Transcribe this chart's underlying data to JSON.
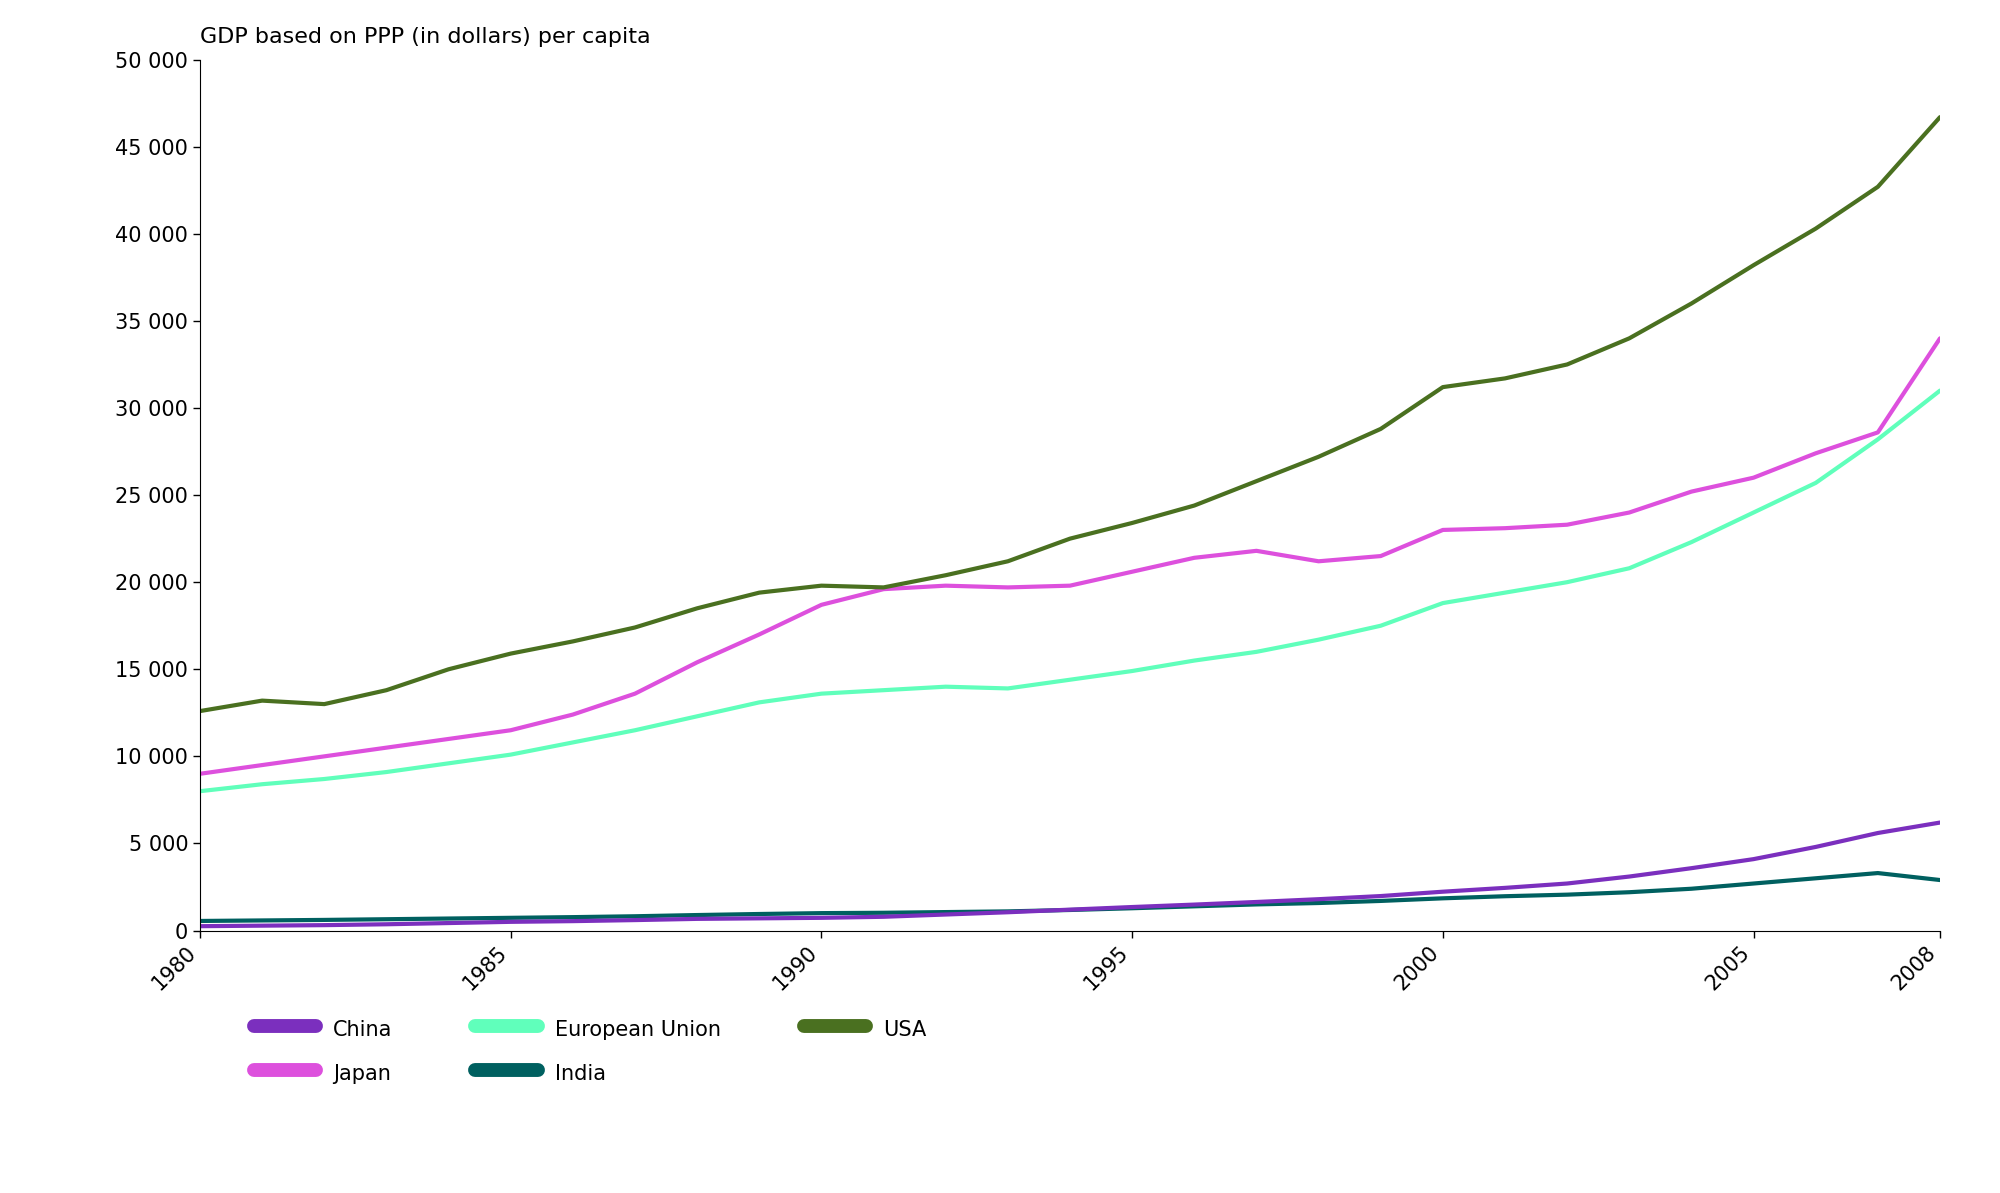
{
  "title": "GDP based on PPP (in dollars) per capita",
  "series": {
    "China": {
      "color": "#7B2FBE",
      "years": [
        1980,
        1981,
        1982,
        1983,
        1984,
        1985,
        1986,
        1987,
        1988,
        1989,
        1990,
        1991,
        1992,
        1993,
        1994,
        1995,
        1996,
        1997,
        1998,
        1999,
        2000,
        2001,
        2002,
        2003,
        2004,
        2005,
        2006,
        2007,
        2008
      ],
      "values": [
        250,
        280,
        310,
        360,
        430,
        500,
        540,
        600,
        670,
        700,
        730,
        790,
        920,
        1050,
        1200,
        1350,
        1490,
        1640,
        1800,
        1980,
        2230,
        2450,
        2700,
        3100,
        3580,
        4100,
        4800,
        5600,
        6200
      ]
    },
    "India": {
      "color": "#006060",
      "years": [
        1980,
        1981,
        1982,
        1983,
        1984,
        1985,
        1986,
        1987,
        1988,
        1989,
        1990,
        1991,
        1992,
        1993,
        1994,
        1995,
        1996,
        1997,
        1998,
        1999,
        2000,
        2001,
        2002,
        2003,
        2004,
        2005,
        2006,
        2007,
        2008
      ],
      "values": [
        550,
        580,
        610,
        650,
        690,
        730,
        770,
        820,
        890,
        950,
        1000,
        1020,
        1060,
        1100,
        1180,
        1280,
        1390,
        1500,
        1580,
        1700,
        1850,
        1970,
        2060,
        2200,
        2400,
        2700,
        3000,
        3300,
        2900
      ]
    },
    "Japan": {
      "color": "#DD50DD",
      "years": [
        1980,
        1981,
        1982,
        1983,
        1984,
        1985,
        1986,
        1987,
        1988,
        1989,
        1990,
        1991,
        1992,
        1993,
        1994,
        1995,
        1996,
        1997,
        1998,
        1999,
        2000,
        2001,
        2002,
        2003,
        2004,
        2005,
        2006,
        2007,
        2008
      ],
      "values": [
        9000,
        9500,
        10000,
        10500,
        11000,
        11500,
        12400,
        13600,
        15400,
        17000,
        18700,
        19600,
        19800,
        19700,
        19800,
        20600,
        21400,
        21800,
        21200,
        21500,
        23000,
        23100,
        23300,
        24000,
        25200,
        26000,
        27400,
        28600,
        34000
      ]
    },
    "USA": {
      "color": "#4A7020",
      "years": [
        1980,
        1981,
        1982,
        1983,
        1984,
        1985,
        1986,
        1987,
        1988,
        1989,
        1990,
        1991,
        1992,
        1993,
        1994,
        1995,
        1996,
        1997,
        1998,
        1999,
        2000,
        2001,
        2002,
        2003,
        2004,
        2005,
        2006,
        2007,
        2008
      ],
      "values": [
        12600,
        13200,
        13000,
        13800,
        15000,
        15900,
        16600,
        17400,
        18500,
        19400,
        19800,
        19700,
        20400,
        21200,
        22500,
        23400,
        24400,
        25800,
        27200,
        28800,
        31200,
        31700,
        32500,
        34000,
        36000,
        38200,
        40300,
        42700,
        46700
      ]
    },
    "European Union": {
      "color": "#60FFBB",
      "years": [
        1980,
        1981,
        1982,
        1983,
        1984,
        1985,
        1986,
        1987,
        1988,
        1989,
        1990,
        1991,
        1992,
        1993,
        1994,
        1995,
        1996,
        1997,
        1998,
        1999,
        2000,
        2001,
        2002,
        2003,
        2004,
        2005,
        2006,
        2007,
        2008
      ],
      "values": [
        8000,
        8400,
        8700,
        9100,
        9600,
        10100,
        10800,
        11500,
        12300,
        13100,
        13600,
        13800,
        14000,
        13900,
        14400,
        14900,
        15500,
        16000,
        16700,
        17500,
        18800,
        19400,
        20000,
        20800,
        22300,
        24000,
        25700,
        28200,
        31000
      ]
    }
  },
  "xlim": [
    1980,
    2008
  ],
  "ylim": [
    0,
    50000
  ],
  "yticks": [
    0,
    5000,
    10000,
    15000,
    20000,
    25000,
    30000,
    35000,
    40000,
    45000,
    50000
  ],
  "xticks": [
    1980,
    1985,
    1990,
    1995,
    2000,
    2005,
    2008
  ],
  "legend_order": [
    "China",
    "Japan",
    "European Union",
    "India",
    "USA"
  ],
  "linewidth": 3.0,
  "title_fontsize": 16,
  "tick_fontsize": 15,
  "legend_fontsize": 15,
  "background_color": "#ffffff"
}
